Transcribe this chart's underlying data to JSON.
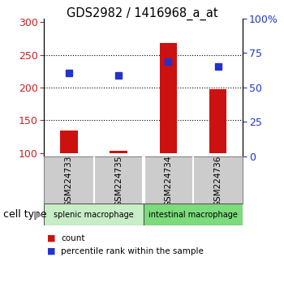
{
  "title": "GDS2982 / 1416968_a_at",
  "samples": [
    "GSM224733",
    "GSM224735",
    "GSM224734",
    "GSM224736"
  ],
  "counts": [
    135,
    103,
    268,
    198
  ],
  "percentile_ranks": [
    222,
    218,
    240,
    232
  ],
  "ylim_left": [
    95,
    305
  ],
  "ylim_right": [
    0,
    100
  ],
  "yticks_left": [
    100,
    150,
    200,
    250,
    300
  ],
  "yticks_right": [
    0,
    25,
    50,
    75,
    100
  ],
  "yticklabels_right": [
    "0",
    "25",
    "50",
    "75",
    "100%"
  ],
  "cell_types": [
    {
      "label": "splenic macrophage",
      "color": "#c8eec8",
      "span": [
        0,
        1
      ]
    },
    {
      "label": "intestinal macrophage",
      "color": "#7cdc7c",
      "span": [
        2,
        3
      ]
    }
  ],
  "bar_color": "#cc1111",
  "point_color": "#2233cc",
  "label_area_color": "#cccccc",
  "cell_type_label": "cell type",
  "legend_items": [
    {
      "color": "#cc1111",
      "label": "count"
    },
    {
      "color": "#2233cc",
      "label": "percentile rank within the sample"
    }
  ],
  "baseline": 100,
  "dotted_lines": [
    150,
    200,
    250
  ]
}
